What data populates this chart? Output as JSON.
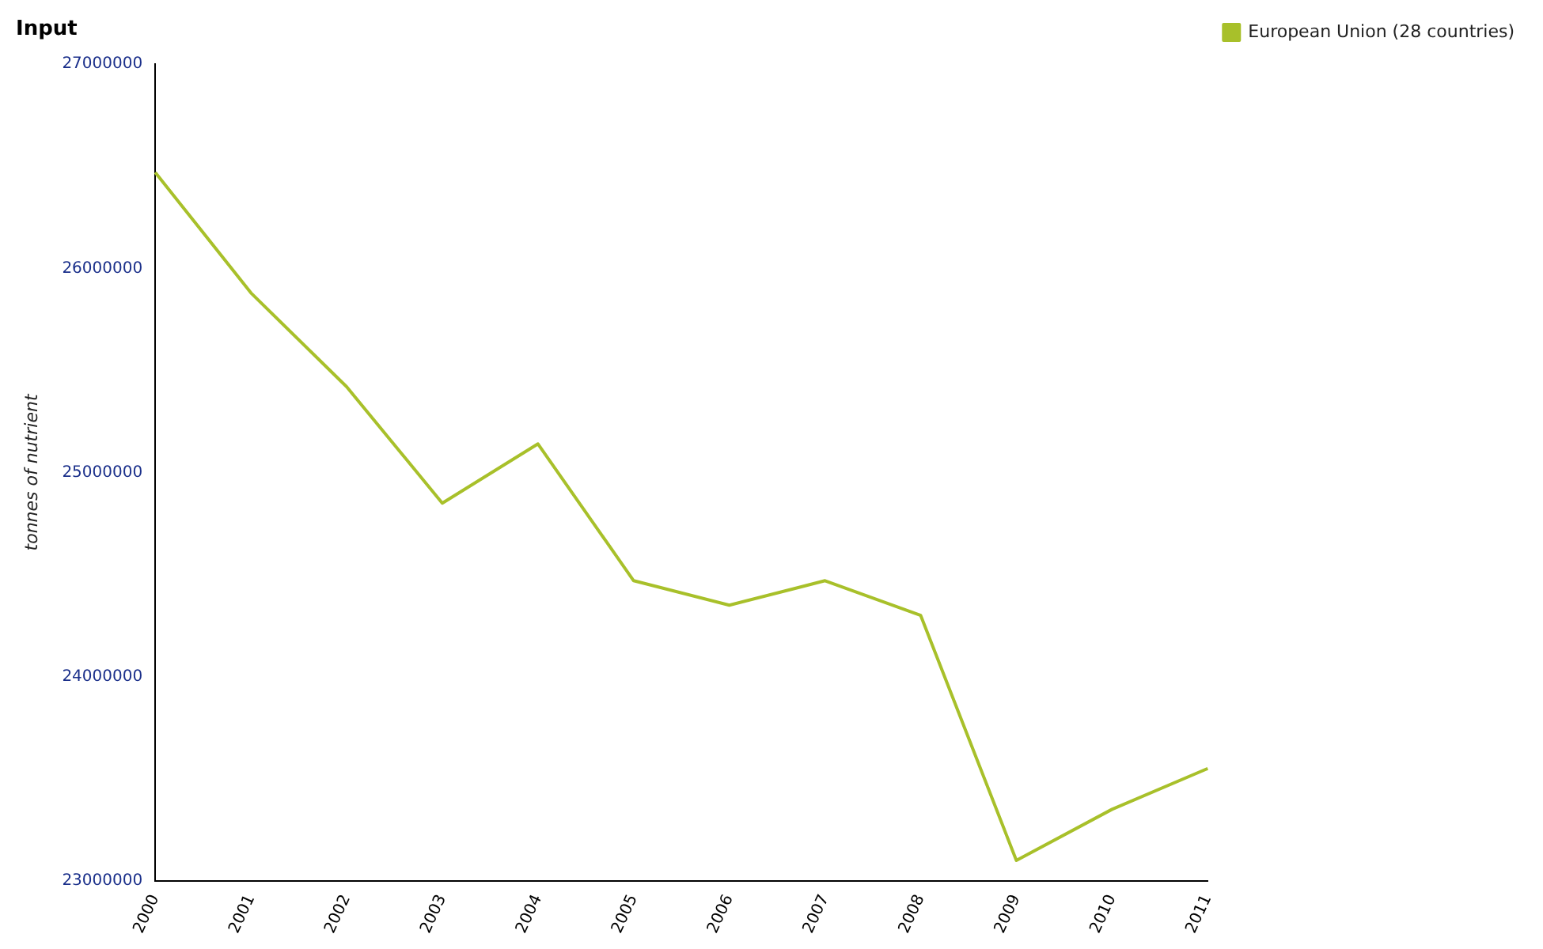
{
  "chart_data": {
    "type": "line",
    "title": "Input",
    "ylabel": "tonnes of nutrient",
    "categories": [
      "2000",
      "2001",
      "2002",
      "2003",
      "2004",
      "2005",
      "2006",
      "2007",
      "2008",
      "2009",
      "2010",
      "2011"
    ],
    "series": [
      {
        "name": "European Union (28 countries)",
        "color": "#a8c02a",
        "values": [
          26470000,
          25880000,
          25420000,
          24850000,
          25140000,
          24470000,
          24350000,
          24470000,
          24300000,
          23100000,
          23350000,
          23550000
        ]
      }
    ],
    "ylim": [
      23000000,
      27000000
    ],
    "yticks": [
      23000000,
      24000000,
      25000000,
      26000000,
      27000000
    ],
    "grid": false,
    "legend": "top right",
    "marker": "none",
    "line_style": "solid"
  }
}
